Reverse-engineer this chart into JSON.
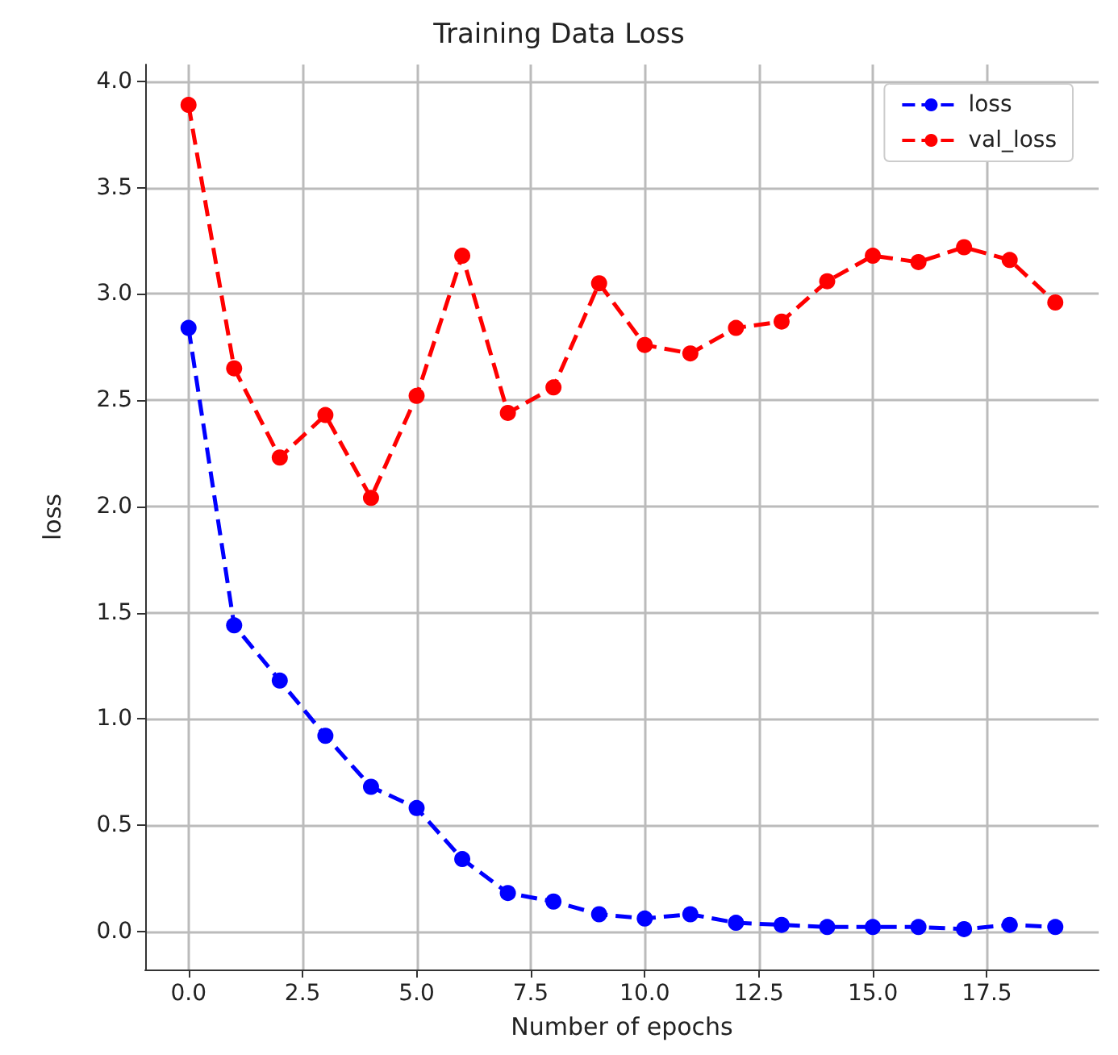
{
  "chart_data": {
    "type": "line",
    "title": "Training Data Loss",
    "xlabel": "Number of epochs",
    "ylabel": "loss",
    "x": [
      0,
      1,
      2,
      3,
      4,
      5,
      6,
      7,
      8,
      9,
      10,
      11,
      12,
      13,
      14,
      15,
      16,
      17,
      18,
      19
    ],
    "series": [
      {
        "name": "loss",
        "color": "#0000ff",
        "values": [
          2.84,
          1.44,
          1.18,
          0.92,
          0.68,
          0.58,
          0.34,
          0.18,
          0.14,
          0.08,
          0.06,
          0.08,
          0.04,
          0.03,
          0.02,
          0.02,
          0.02,
          0.01,
          0.03,
          0.02
        ]
      },
      {
        "name": "val_loss",
        "color": "#ff0000",
        "values": [
          3.89,
          2.65,
          2.23,
          2.43,
          2.04,
          2.52,
          3.18,
          2.44,
          2.56,
          3.05,
          2.76,
          2.72,
          2.84,
          2.87,
          3.06,
          3.18,
          3.15,
          3.22,
          3.16,
          2.96
        ]
      }
    ],
    "xlim": [
      -0.95,
      19.95
    ],
    "ylim": [
      -0.18,
      4.08
    ],
    "xticks": [
      {
        "value": 0,
        "label": "0.0"
      },
      {
        "value": 2.5,
        "label": "2.5"
      },
      {
        "value": 5,
        "label": "5.0"
      },
      {
        "value": 7.5,
        "label": "7.5"
      },
      {
        "value": 10,
        "label": "10.0"
      },
      {
        "value": 12.5,
        "label": "12.5"
      },
      {
        "value": 15,
        "label": "15.0"
      },
      {
        "value": 17.5,
        "label": "17.5"
      }
    ],
    "yticks": [
      {
        "value": 0,
        "label": "0.0"
      },
      {
        "value": 0.5,
        "label": "0.5"
      },
      {
        "value": 1,
        "label": "1.0"
      },
      {
        "value": 1.5,
        "label": "1.5"
      },
      {
        "value": 2,
        "label": "2.0"
      },
      {
        "value": 2.5,
        "label": "2.5"
      },
      {
        "value": 3,
        "label": "3.0"
      },
      {
        "value": 3.5,
        "label": "3.5"
      },
      {
        "value": 4,
        "label": "4.0"
      }
    ],
    "grid": true,
    "legend": "top right",
    "marker": "circle",
    "line_style": "dashed"
  }
}
